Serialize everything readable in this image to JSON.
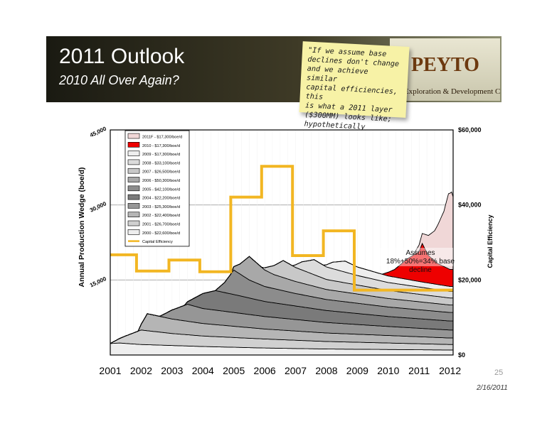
{
  "slide": {
    "title": "2011 Outlook",
    "subtitle": "2010 All Over Again?",
    "logo_word": "PEYTO",
    "logo_line": "Exploration & Development Corp.",
    "note_lines": [
      "\"If we assume base",
      "declines don't change",
      "and we achieve similar",
      "capital efficiencies, this",
      "is what a 2011 layer",
      "($300MM) looks like;",
      "hypothetically speaking.\""
    ],
    "page_number": "25",
    "date": "2/16/2011"
  },
  "colors": {
    "capital_line": "#f2b622",
    "layer_2010": "#ee0000",
    "layer_2011f": "#f0d7d7",
    "accent_banner": "#3e3a26"
  },
  "chart_data": {
    "type": "area",
    "title": "",
    "xlabel": "",
    "ylabel": "Annual Production Wedge  (boe/d)",
    "y2label": "Capital Efficiency",
    "xlim": [
      2001.0,
      2012.1
    ],
    "ylim": [
      0,
      45000
    ],
    "y2lim": [
      0,
      60000
    ],
    "x_ticks": [
      "2001",
      "2002",
      "2003",
      "2004",
      "2005",
      "2006",
      "2007",
      "2008",
      "2009",
      "2010",
      "2011",
      "2012"
    ],
    "y_ticks": [
      "15,000",
      "30,000",
      "45,000"
    ],
    "y2_ticks": [
      "$0",
      "$20,000",
      "$40,000",
      "$60,000"
    ],
    "grid": true,
    "legend_position": "top-left",
    "legend": [
      "2011F - $17,300/boe/d",
      "2010 - $17,300/boe/d",
      "2009 - $17,300/boe/d",
      "2008 - $33,100/boe/d",
      "2007 - $26,500/boe/d",
      "2006 - $50,300/boe/d",
      "2005 - $42,100/boe/d",
      "2004 - $22,200/boe/d",
      "2003 - $25,300/boe/d",
      "2002 - $22,400/boe/d",
      "2001 - $26,700/boe/d",
      "2000 - $22,600/boe/d",
      "Capital Efficiency"
    ],
    "series": [
      {
        "name": "2000 - $22,600/boe/d",
        "color": "#eeeeee",
        "x": [
          2001.0,
          2001.3,
          2002.0,
          2004.0,
          2006.0,
          2008.0,
          2010.0,
          2012.0
        ],
        "values": [
          2300,
          2400,
          2100,
          1700,
          1400,
          1200,
          1100,
          1000
        ]
      },
      {
        "name": "2001 - $26,700/boe/d",
        "color": "#d0d0d0",
        "x": [
          2001.0,
          2001.5,
          2002.0,
          2003.0,
          2004.0,
          2006.0,
          2008.0,
          2010.0,
          2012.0
        ],
        "values": [
          0,
          1500,
          2900,
          2400,
          2100,
          1800,
          1500,
          1300,
          1100
        ]
      },
      {
        "name": "2002 - $22,400/boe/d",
        "color": "#b5b5b5",
        "x": [
          2001.9,
          2002.2,
          2003.0,
          2004.0,
          2006.0,
          2008.0,
          2010.0,
          2012.0
        ],
        "values": [
          0,
          3400,
          2900,
          2500,
          2000,
          1700,
          1500,
          1300
        ]
      },
      {
        "name": "2003 - $25,300/boe/d",
        "color": "#969696",
        "x": [
          2002.6,
          2003.0,
          2003.5,
          2004.0,
          2006.0,
          2008.0,
          2010.0,
          2012.0
        ],
        "values": [
          0,
          1800,
          3400,
          3000,
          2500,
          2100,
          1800,
          1600
        ]
      },
      {
        "name": "2004 - $22,200/boe/d",
        "color": "#7a7a7a",
        "x": [
          2003.4,
          2004.0,
          2004.4,
          2005.0,
          2006.0,
          2008.0,
          2010.0,
          2012.0
        ],
        "values": [
          0,
          3000,
          3900,
          3600,
          3000,
          2400,
          2000,
          1800
        ]
      },
      {
        "name": "2005 - $42,100/boe/d",
        "color": "#8c8c8c",
        "x": [
          2004.4,
          2004.7,
          2005.0,
          2005.5,
          2006.0,
          2007.0,
          2008.0,
          2010.0,
          2012.0
        ],
        "values": [
          0,
          2000,
          4900,
          3600,
          3000,
          2500,
          2200,
          1900,
          1700
        ]
      },
      {
        "name": "2006 - $50,300/boe/d",
        "color": "#a8a8a8",
        "x": [
          2004.9,
          2005.2,
          2005.5,
          2006.0,
          2006.3,
          2007.0,
          2008.0,
          2010.0,
          2012.0
        ],
        "values": [
          0,
          2000,
          4700,
          3300,
          2800,
          2400,
          2000,
          1700,
          1500
        ]
      },
      {
        "name": "2007 - $26,500/boe/d",
        "color": "#c8c8c8",
        "x": [
          2005.9,
          2006.3,
          2006.6,
          2007.0,
          2007.5,
          2008.0,
          2010.0,
          2012.0
        ],
        "values": [
          0,
          1800,
          3400,
          2800,
          2400,
          2000,
          1600,
          1400
        ]
      },
      {
        "name": "2008 - $33,100/boe/d",
        "color": "#dcdcdc",
        "x": [
          2006.9,
          2007.2,
          2007.6,
          2008.0,
          2009.0,
          2010.0,
          2012.0
        ],
        "values": [
          0,
          1600,
          3000,
          2500,
          1900,
          1600,
          1300
        ]
      },
      {
        "name": "2009 - $17,300/boe/d",
        "color": "#eeeeee",
        "x": [
          2007.9,
          2008.2,
          2008.6,
          2009.0,
          2010.0,
          2011.0,
          2012.0
        ],
        "values": [
          0,
          1300,
          2200,
          1700,
          1300,
          1100,
          1000
        ]
      },
      {
        "name": "2010 - $17,300/boe/d",
        "color": "#ee0000",
        "x": [
          2009.8,
          2010.2,
          2010.6,
          2011.0,
          2011.1,
          2011.3,
          2011.6,
          2012.0
        ],
        "values": [
          0,
          1500,
          4000,
          6000,
          7700,
          5500,
          4200,
          3400
        ]
      },
      {
        "name": "2011F - $17,300/boe/d",
        "color": "#f0d7d7",
        "x": [
          2010.8,
          2011.1,
          2011.5,
          2011.8,
          2011.95,
          2012.05,
          2012.1
        ],
        "values": [
          0,
          2000,
          6000,
          11000,
          15000,
          15500,
          14500
        ]
      },
      {
        "name": "Capital Efficiency",
        "color": "#f2b622",
        "axis": "y2",
        "x": [
          2001.0,
          2001.85,
          2001.85,
          2002.9,
          2002.9,
          2003.9,
          2003.9,
          2004.9,
          2004.9,
          2005.9,
          2005.9,
          2006.9,
          2006.9,
          2007.9,
          2007.9,
          2008.9,
          2008.9,
          2009.9,
          2009.9,
          2012.1
        ],
        "values": [
          26700,
          26700,
          22400,
          22400,
          25300,
          25300,
          22200,
          22200,
          42100,
          42100,
          50300,
          50300,
          26500,
          26500,
          33100,
          33100,
          17300,
          17300,
          17300,
          17300
        ]
      }
    ],
    "annotation": [
      "Assumes",
      "18%+50%=34% base decline"
    ]
  }
}
